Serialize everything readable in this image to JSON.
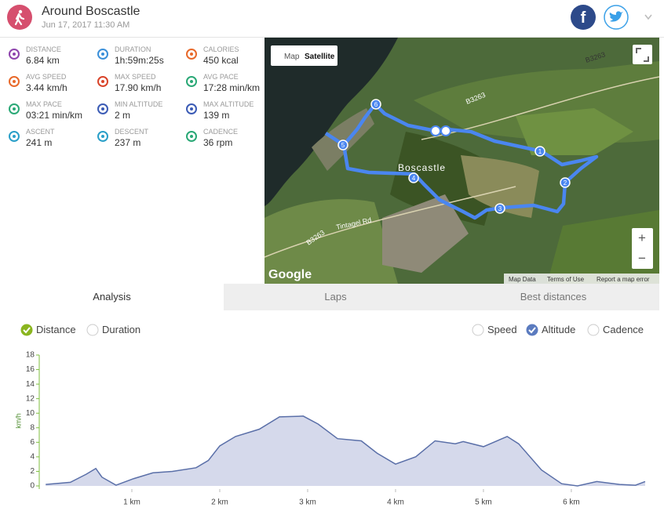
{
  "header": {
    "title": "Around Boscastle",
    "date": "Jun 17, 2017 11:30 AM",
    "facebook": "f"
  },
  "stats": [
    {
      "label": "Distance",
      "value": "6.84 km"
    },
    {
      "label": "Duration",
      "value": "1h:59m:25s"
    },
    {
      "label": "Calories",
      "value": "450 kcal"
    },
    {
      "label": "Avg speed",
      "value": "3.44 km/h"
    },
    {
      "label": "Max speed",
      "value": "17.90 km/h"
    },
    {
      "label": "Avg pace",
      "value": "17:28 min/km"
    },
    {
      "label": "Max pace",
      "value": "03:21 min/km"
    },
    {
      "label": "Min altitude",
      "value": "2 m"
    },
    {
      "label": "Max altitude",
      "value": "139 m"
    },
    {
      "label": "Ascent",
      "value": "241 m"
    },
    {
      "label": "Descent",
      "value": "237 m"
    },
    {
      "label": "Cadence",
      "value": "36 rpm"
    }
  ],
  "map": {
    "buttons": [
      "Map",
      "Satellite"
    ],
    "place": "Boscastle",
    "roads": [
      "B3263",
      "B3263",
      "B3263",
      "Tintagel Rd"
    ],
    "markers": [
      "1",
      "2",
      "3",
      "4",
      "5",
      "6"
    ],
    "logo": "Google",
    "footer": [
      "Map Data",
      "Terms of Use",
      "Report a map error"
    ],
    "zoom": [
      "+",
      "−"
    ]
  },
  "tabs": [
    "Analysis",
    "Laps",
    "Best distances"
  ],
  "toggles": [
    {
      "label": "Distance",
      "checked": true,
      "color": "#8ab51f"
    },
    {
      "label": "Duration",
      "checked": false
    },
    {
      "label": "Speed",
      "checked": false
    },
    {
      "label": "Altitude",
      "checked": true,
      "color": "#5b7bbf"
    },
    {
      "label": "Cadence",
      "checked": false
    }
  ],
  "chart_data": {
    "type": "area",
    "ylabel": "km/h",
    "color": "#5a6fa8",
    "fill": "#d5d9eb",
    "x": [
      0.02,
      0.3,
      0.48,
      0.59,
      0.66,
      0.82,
      1.02,
      1.24,
      1.46,
      1.73,
      1.87,
      2.0,
      2.18,
      2.45,
      2.68,
      2.95,
      3.12,
      3.34,
      3.61,
      3.79,
      4.0,
      4.23,
      4.45,
      4.68,
      4.77,
      5.0,
      5.27,
      5.4,
      5.66,
      5.89,
      6.07,
      6.29,
      6.55,
      6.73,
      6.84
    ],
    "values": [
      0.2,
      0.5,
      1.6,
      2.4,
      1.2,
      0.1,
      1.0,
      1.8,
      2.0,
      2.5,
      3.5,
      5.5,
      6.8,
      7.8,
      9.5,
      9.6,
      8.5,
      6.5,
      6.2,
      4.5,
      3.0,
      4.0,
      6.2,
      5.8,
      6.1,
      5.4,
      6.8,
      5.8,
      2.2,
      0.3,
      0,
      0.6,
      0.2,
      0.1,
      0.6
    ],
    "xlim": [
      0,
      6.84
    ],
    "ylim": [
      0,
      18
    ],
    "xticks": [
      {
        "value": 1,
        "label": "1 km"
      },
      {
        "value": 2,
        "label": "2 km"
      },
      {
        "value": 3,
        "label": "3 km"
      },
      {
        "value": 4,
        "label": "4 km"
      },
      {
        "value": 5,
        "label": "5 km"
      },
      {
        "value": 6,
        "label": "6 km"
      }
    ],
    "yticks": [
      0,
      2,
      4,
      6,
      8,
      10,
      12,
      14,
      16,
      18
    ]
  }
}
